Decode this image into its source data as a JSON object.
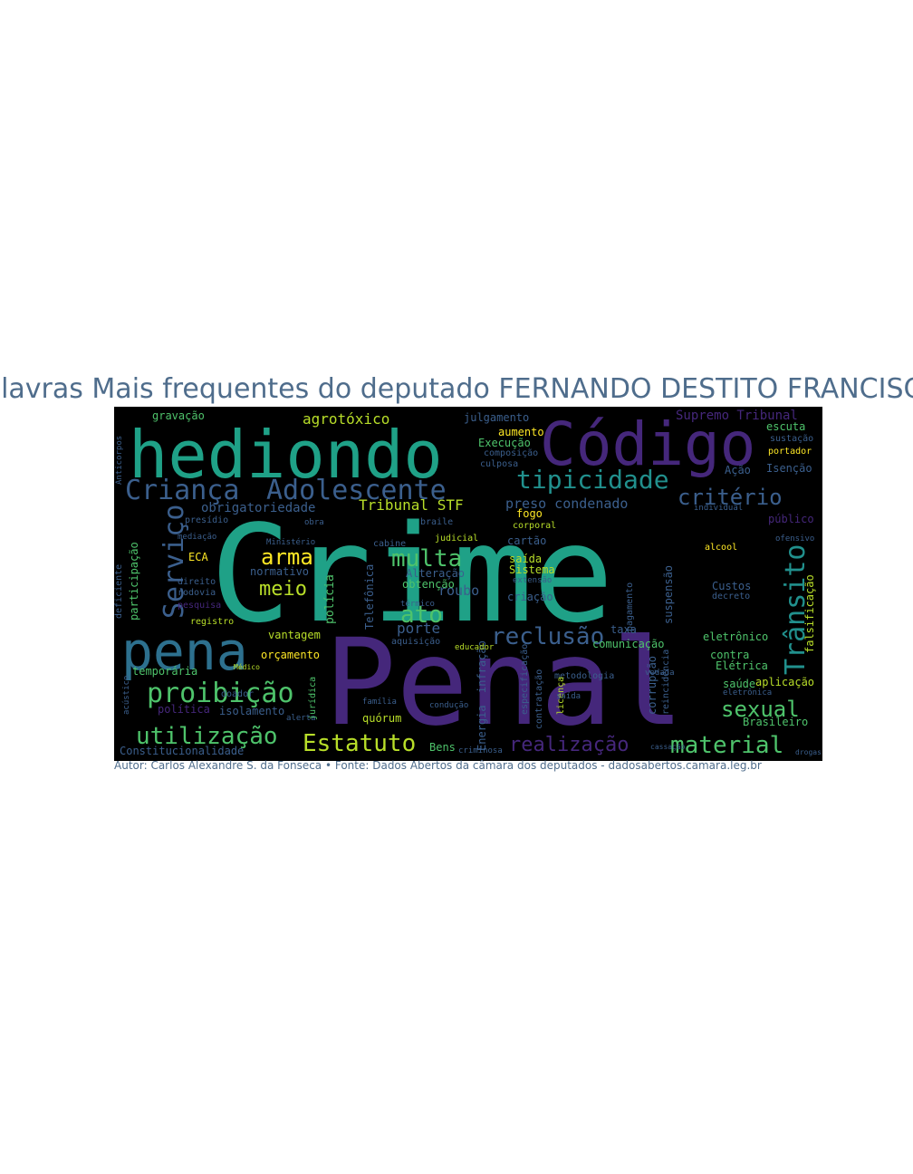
{
  "title": "Palavras Mais frequentes do deputado FERNANDO DESTITO FRANCISCO",
  "caption": "Autor: Carlos Alexandre S. da Fonseca • Fonte: Dados Abertos da câmara dos deputados - dadosabertos.camara.leg.br",
  "colors": {
    "title": "#4f6d8c",
    "background": "#000000",
    "teal": "#1fa187",
    "purple": "#45277b",
    "blue": "#3b5f8d",
    "green": "#4ec36b",
    "lime": "#b8de29",
    "yellow": "#fde725"
  },
  "words": [
    "Crime",
    "Penal",
    "hediondo",
    "Código",
    "pena",
    "Criança",
    "Adolescente",
    "tipicidade",
    "critério",
    "Serviço",
    "Trânsito",
    "proibição",
    "utilização",
    "Estatuto",
    "material",
    "sexual",
    "reclusão",
    "multa",
    "arma",
    "ato",
    "meio",
    "realização",
    "agrotóxico",
    "gravação",
    "julgamento",
    "Supremo Tribunal",
    "obrigatoriedade",
    "Tribunal STF",
    "preso condenado",
    "Constitucionalidade",
    "Brasileiro",
    "aplicação",
    "porte",
    "roubo",
    "polícia",
    "Telefônica",
    "Energia",
    "infração",
    "falsificação",
    "público",
    "ofensivo",
    "Custos",
    "decreto",
    "escuta",
    "sustação",
    "portador",
    "Isenção",
    "Ação",
    "Execução",
    "aumento",
    "composição",
    "culposa",
    "Sistema",
    "saída",
    "cartão",
    "fogo",
    "criação",
    "suspensão",
    "pagamento",
    "vantagem",
    "orçamento",
    "temporária",
    "política",
    "isolamento",
    "doador",
    "alerta",
    "quórum",
    "criminosa",
    "Bens",
    "comunicação",
    "taxa",
    "eletrônico",
    "contra",
    "Elétrica",
    "saúde",
    "metodologia",
    "corrupção",
    "reincidência",
    "Alteração",
    "obtenção",
    "aquisição",
    "educador",
    "judicial",
    "corporal",
    "normativo",
    "registro",
    "pesquisa",
    "rodovia",
    "direito",
    "ECA",
    "mediação",
    "presídio",
    "deficiente",
    "participação",
    "Ministério",
    "obra",
    "braile",
    "cabine",
    "térmico",
    "extensão",
    "especificação",
    "contratação",
    "licença",
    "família",
    "condução",
    "jurídica",
    "Médico",
    "vedada",
    "saída",
    "alcool",
    "individual",
    "eletrônica",
    "drogas",
    "acústico",
    "Anticorpos",
    "cassação"
  ]
}
